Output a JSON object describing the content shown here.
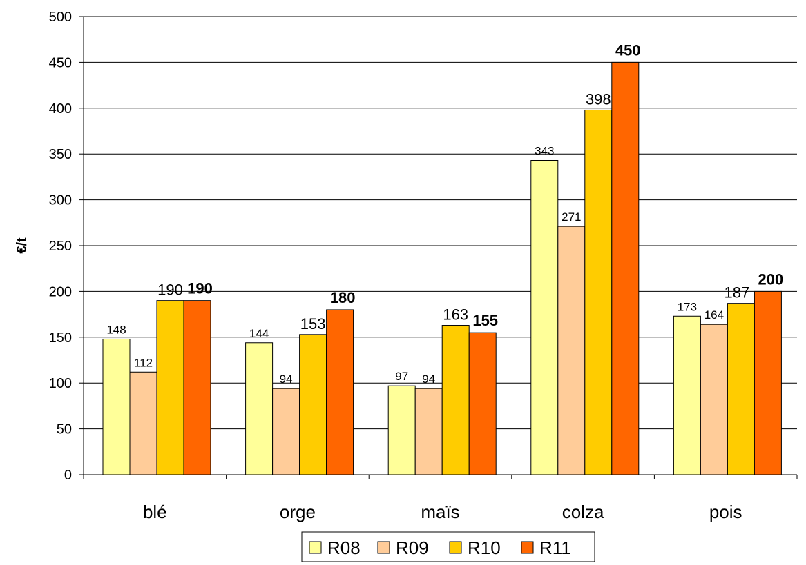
{
  "chart_data": {
    "type": "bar",
    "categories": [
      "blé",
      "orge",
      "maïs",
      "colza",
      "pois"
    ],
    "series": [
      {
        "name": "R08",
        "values": [
          148,
          144,
          97,
          343,
          173
        ],
        "color": "#FFFF99"
      },
      {
        "name": "R09",
        "values": [
          112,
          94,
          94,
          271,
          164
        ],
        "color": "#FFCC99"
      },
      {
        "name": "R10",
        "values": [
          190,
          153,
          163,
          398,
          187
        ],
        "color": "#FFCC00"
      },
      {
        "name": "R11",
        "values": [
          190,
          180,
          155,
          450,
          200
        ],
        "color": "#FF6600"
      }
    ],
    "data_labels": [
      [
        "148",
        "144",
        "97",
        "343",
        "173"
      ],
      [
        "112",
        "94",
        "94",
        "271",
        "164"
      ],
      [
        "190",
        "153",
        "163",
        "398",
        "187"
      ],
      [
        "190",
        "180",
        "155",
        "450",
        "200"
      ]
    ],
    "title": "",
    "xlabel": "",
    "ylabel": "€/t",
    "ylim": [
      0,
      500
    ],
    "yticks": [
      "0",
      "50",
      "100",
      "150",
      "200",
      "250",
      "300",
      "350",
      "400",
      "450",
      "500"
    ],
    "grid": true,
    "legend_position": "bottom"
  }
}
